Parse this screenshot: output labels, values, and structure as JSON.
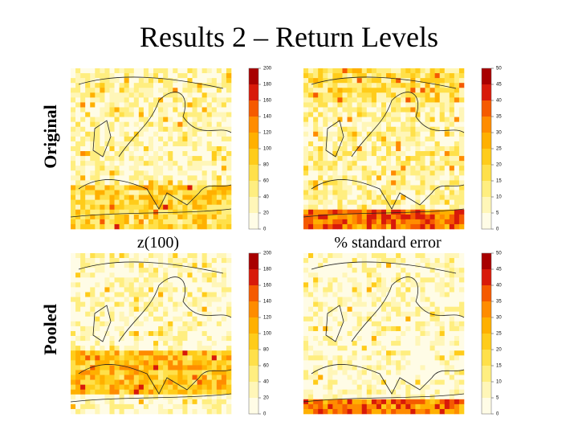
{
  "title": "Results 2 – Return Levels",
  "row_labels": [
    "Original",
    "Pooled"
  ],
  "column_labels": [
    "z(100)",
    "% standard error"
  ],
  "colorbars": [
    {
      "ticks": [
        0,
        20,
        40,
        60,
        80,
        100,
        120,
        140,
        160,
        180,
        200
      ]
    },
    {
      "ticks": [
        0,
        5,
        10,
        15,
        20,
        25,
        30,
        35,
        40,
        45,
        50
      ]
    }
  ]
}
